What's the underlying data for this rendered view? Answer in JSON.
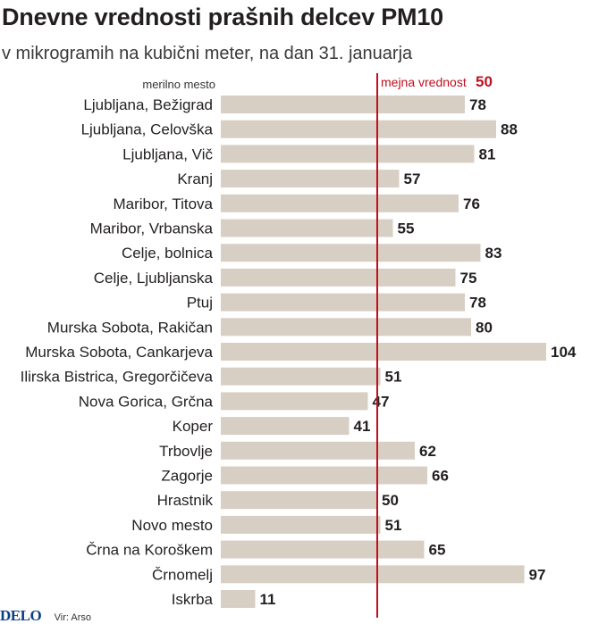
{
  "chart_data": {
    "type": "bar",
    "orientation": "horizontal",
    "title": "Dnevne vrednosti prašnih delcev PM10",
    "subtitle": "v mikrogramih na kubični meter, na dan 31. januarja",
    "category_header": "merilno mesto",
    "categories": [
      "Ljubljana, Bežigrad",
      "Ljubljana, Celovška",
      "Ljubljana, Vič",
      "Kranj",
      "Maribor, Titova",
      "Maribor, Vrbanska",
      "Celje, bolnica",
      "Celje, Ljubljanska",
      "Ptuj",
      "Murska Sobota, Rakičan",
      "Murska Sobota, Cankarjeva",
      "Ilirska Bistrica, Gregorčičeva",
      "Nova Gorica, Grčna",
      "Koper",
      "Trbovlje",
      "Zagorje",
      "Hrastnik",
      "Novo mesto",
      "Črna na Koroškem",
      "Črnomelj",
      "Iskrba"
    ],
    "values": [
      78,
      88,
      81,
      57,
      76,
      55,
      83,
      75,
      78,
      80,
      104,
      51,
      47,
      41,
      62,
      66,
      50,
      51,
      65,
      97,
      11
    ],
    "limit": {
      "label": "mejna vrednost",
      "value": 50,
      "color": "#c00f1e"
    },
    "bar_color": "#d8cfc4",
    "xlim": [
      0,
      104
    ]
  },
  "footer": {
    "brand": "DELO",
    "source": "Vir: Arso"
  }
}
